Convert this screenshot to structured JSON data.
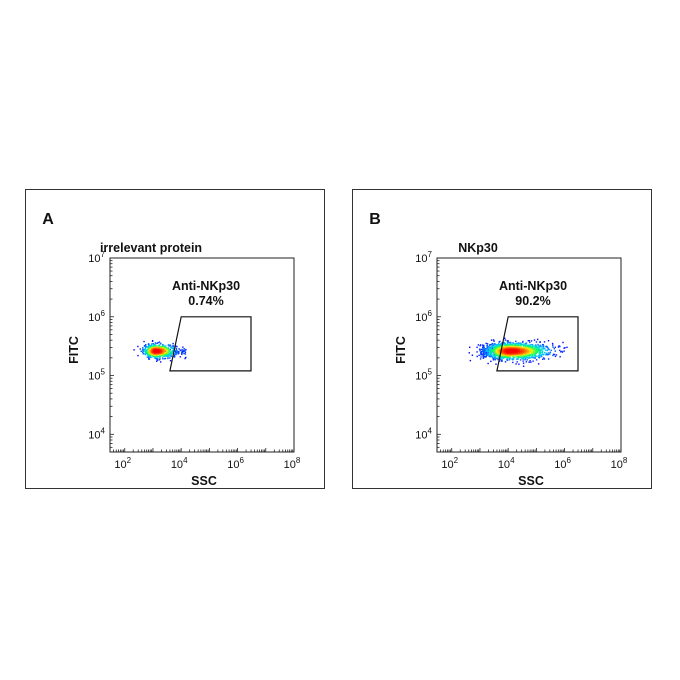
{
  "chart_data": [
    {
      "type": "scatter",
      "panel_letter": "A",
      "title": "irrelevant protein",
      "xlabel": "SSC",
      "ylabel": "FITC",
      "x_scale": "log",
      "y_scale": "log",
      "xlim": [
        30,
        100000000
      ],
      "ylim": [
        5000,
        10000000
      ],
      "x_ticks": [
        {
          "base": "10",
          "exp": "2",
          "value": 100
        },
        {
          "base": "10",
          "exp": "4",
          "value": 10000
        },
        {
          "base": "10",
          "exp": "6",
          "value": 1000000
        },
        {
          "base": "10",
          "exp": "8",
          "value": 100000000
        }
      ],
      "y_ticks": [
        {
          "base": "10",
          "exp": "4",
          "value": 10000
        },
        {
          "base": "10",
          "exp": "5",
          "value": 100000
        },
        {
          "base": "10",
          "exp": "6",
          "value": 1000000
        },
        {
          "base": "10",
          "exp": "7",
          "value": 10000000
        }
      ],
      "gate": {
        "name": "Anti-NKp30",
        "percent": "0.74%",
        "polygon": [
          [
            10000,
            1000000
          ],
          [
            3000000,
            1000000
          ],
          [
            3000000,
            120000
          ],
          [
            4000,
            120000
          ]
        ]
      },
      "population": {
        "center_x": 1300,
        "center_y": 260000,
        "spread_log_x": 0.28,
        "spread_log_y": 0.06,
        "count": 650,
        "tail_x": 16000
      }
    },
    {
      "type": "scatter",
      "panel_letter": "B",
      "title": "NKp30",
      "xlabel": "SSC",
      "ylabel": "FITC",
      "x_scale": "log",
      "y_scale": "log",
      "xlim": [
        30,
        100000000
      ],
      "ylim": [
        5000,
        10000000
      ],
      "x_ticks": [
        {
          "base": "10",
          "exp": "2",
          "value": 100
        },
        {
          "base": "10",
          "exp": "4",
          "value": 10000
        },
        {
          "base": "10",
          "exp": "6",
          "value": 1000000
        },
        {
          "base": "10",
          "exp": "8",
          "value": 100000000
        }
      ],
      "y_ticks": [
        {
          "base": "10",
          "exp": "4",
          "value": 10000
        },
        {
          "base": "10",
          "exp": "5",
          "value": 100000
        },
        {
          "base": "10",
          "exp": "6",
          "value": 1000000
        },
        {
          "base": "10",
          "exp": "7",
          "value": 10000000
        }
      ],
      "gate": {
        "name": "Anti-NKp30",
        "percent": "90.2%",
        "polygon": [
          [
            10000,
            1000000
          ],
          [
            3000000,
            1000000
          ],
          [
            3000000,
            120000
          ],
          [
            4000,
            120000
          ]
        ]
      },
      "population": {
        "center_x": 12000,
        "center_y": 260000,
        "spread_log_x": 0.55,
        "spread_log_y": 0.07,
        "count": 1500,
        "tail_x": 1000
      }
    }
  ],
  "colors": {
    "frame": "#333333",
    "axis": "#222222",
    "text": "#111111",
    "density_scale": [
      "#0000ff",
      "#00c8ff",
      "#00ff66",
      "#ffee00",
      "#ff6a00",
      "#ff0000"
    ]
  }
}
